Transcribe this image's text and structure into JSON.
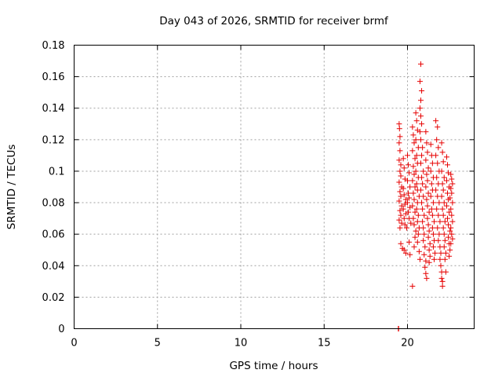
{
  "chart_data": {
    "type": "scatter",
    "title": "Day 043 of 2026, SRMTID for receiver brmf",
    "xlabel": "GPS time / hours",
    "ylabel": "SRMTID / TECUs",
    "xlim": [
      0,
      24
    ],
    "ylim": [
      0,
      0.18
    ],
    "xticks": [
      0,
      5,
      10,
      15,
      20
    ],
    "xtick_labels": [
      "0",
      "5",
      "10",
      "15",
      "20"
    ],
    "yticks": [
      0,
      0.02,
      0.04,
      0.06,
      0.08,
      0.1,
      0.12,
      0.14,
      0.16,
      0.18
    ],
    "ytick_labels": [
      "0",
      "0.02",
      "0.04",
      "0.06",
      "0.08",
      "0.1",
      "0.12",
      "0.14",
      "0.16",
      "0.18"
    ],
    "grid": true,
    "marker": "+",
    "color": "#e60000",
    "series": [
      {
        "name": "SRMTID",
        "points": [
          [
            19.45,
            0.0
          ],
          [
            19.47,
            0.0
          ],
          [
            19.5,
            0.13
          ],
          [
            19.52,
            0.127
          ],
          [
            19.55,
            0.122
          ],
          [
            19.5,
            0.118
          ],
          [
            19.55,
            0.113
          ],
          [
            19.5,
            0.107
          ],
          [
            19.6,
            0.104
          ],
          [
            19.55,
            0.1
          ],
          [
            19.6,
            0.097
          ],
          [
            19.5,
            0.093
          ],
          [
            19.65,
            0.09
          ],
          [
            19.55,
            0.087
          ],
          [
            19.6,
            0.084
          ],
          [
            19.5,
            0.081
          ],
          [
            19.65,
            0.078
          ],
          [
            19.55,
            0.075
          ],
          [
            19.6,
            0.072
          ],
          [
            19.5,
            0.069
          ],
          [
            19.65,
            0.067
          ],
          [
            19.55,
            0.064
          ],
          [
            19.6,
            0.054
          ],
          [
            19.7,
            0.051
          ],
          [
            19.75,
            0.108
          ],
          [
            19.8,
            0.102
          ],
          [
            19.85,
            0.095
          ],
          [
            19.75,
            0.089
          ],
          [
            19.8,
            0.085
          ],
          [
            19.9,
            0.082
          ],
          [
            19.85,
            0.079
          ],
          [
            19.75,
            0.076
          ],
          [
            19.9,
            0.073
          ],
          [
            19.8,
            0.07
          ],
          [
            19.85,
            0.066
          ],
          [
            19.95,
            0.064
          ],
          [
            19.8,
            0.05
          ],
          [
            19.9,
            0.048
          ],
          [
            20.0,
            0.11
          ],
          [
            20.05,
            0.104
          ],
          [
            20.1,
            0.099
          ],
          [
            20.0,
            0.094
          ],
          [
            20.15,
            0.09
          ],
          [
            20.05,
            0.086
          ],
          [
            20.1,
            0.083
          ],
          [
            20.0,
            0.08
          ],
          [
            20.15,
            0.077
          ],
          [
            20.05,
            0.074
          ],
          [
            20.1,
            0.07
          ],
          [
            20.2,
            0.067
          ],
          [
            20.1,
            0.055
          ],
          [
            20.15,
            0.047
          ],
          [
            20.3,
            0.027
          ],
          [
            20.3,
            0.128
          ],
          [
            20.35,
            0.123
          ],
          [
            20.4,
            0.118
          ],
          [
            20.3,
            0.113
          ],
          [
            20.45,
            0.108
          ],
          [
            20.35,
            0.103
          ],
          [
            20.4,
            0.098
          ],
          [
            20.3,
            0.094
          ],
          [
            20.45,
            0.09
          ],
          [
            20.35,
            0.086
          ],
          [
            20.4,
            0.082
          ],
          [
            20.3,
            0.078
          ],
          [
            20.45,
            0.074
          ],
          [
            20.35,
            0.07
          ],
          [
            20.4,
            0.066
          ],
          [
            20.5,
            0.062
          ],
          [
            20.45,
            0.058
          ],
          [
            20.4,
            0.052
          ],
          [
            20.5,
            0.137
          ],
          [
            20.55,
            0.132
          ],
          [
            20.6,
            0.126
          ],
          [
            20.5,
            0.12
          ],
          [
            20.65,
            0.115
          ],
          [
            20.55,
            0.11
          ],
          [
            20.6,
            0.105
          ],
          [
            20.5,
            0.1
          ],
          [
            20.65,
            0.096
          ],
          [
            20.55,
            0.092
          ],
          [
            20.6,
            0.088
          ],
          [
            20.7,
            0.084
          ],
          [
            20.6,
            0.08
          ],
          [
            20.55,
            0.076
          ],
          [
            20.65,
            0.072
          ],
          [
            20.6,
            0.068
          ],
          [
            20.7,
            0.064
          ],
          [
            20.65,
            0.06
          ],
          [
            20.6,
            0.055
          ],
          [
            20.7,
            0.049
          ],
          [
            20.75,
            0.044
          ],
          [
            20.8,
            0.168
          ],
          [
            20.75,
            0.157
          ],
          [
            20.85,
            0.151
          ],
          [
            20.8,
            0.145
          ],
          [
            20.75,
            0.14
          ],
          [
            20.8,
            0.135
          ],
          [
            20.85,
            0.13
          ],
          [
            20.75,
            0.125
          ],
          [
            20.8,
            0.12
          ],
          [
            20.9,
            0.115
          ],
          [
            20.85,
            0.11
          ],
          [
            20.8,
            0.105
          ],
          [
            20.95,
            0.1
          ],
          [
            20.85,
            0.096
          ],
          [
            20.9,
            0.092
          ],
          [
            20.8,
            0.088
          ],
          [
            20.95,
            0.084
          ],
          [
            20.85,
            0.08
          ],
          [
            20.9,
            0.076
          ],
          [
            21.0,
            0.072
          ],
          [
            20.9,
            0.068
          ],
          [
            20.95,
            0.064
          ],
          [
            21.0,
            0.06
          ],
          [
            20.95,
            0.056
          ],
          [
            21.05,
            0.052
          ],
          [
            21.0,
            0.047
          ],
          [
            21.1,
            0.043
          ],
          [
            21.05,
            0.039
          ],
          [
            21.1,
            0.035
          ],
          [
            21.15,
            0.032
          ],
          [
            21.1,
            0.125
          ],
          [
            21.15,
            0.118
          ],
          [
            21.2,
            0.112
          ],
          [
            21.1,
            0.107
          ],
          [
            21.25,
            0.102
          ],
          [
            21.15,
            0.098
          ],
          [
            21.2,
            0.094
          ],
          [
            21.1,
            0.09
          ],
          [
            21.25,
            0.086
          ],
          [
            21.15,
            0.082
          ],
          [
            21.2,
            0.078
          ],
          [
            21.3,
            0.074
          ],
          [
            21.2,
            0.07
          ],
          [
            21.25,
            0.066
          ],
          [
            21.3,
            0.062
          ],
          [
            21.25,
            0.058
          ],
          [
            21.35,
            0.054
          ],
          [
            21.3,
            0.05
          ],
          [
            21.35,
            0.046
          ],
          [
            21.3,
            0.042
          ],
          [
            21.4,
            0.117
          ],
          [
            21.45,
            0.11
          ],
          [
            21.5,
            0.105
          ],
          [
            21.4,
            0.1
          ],
          [
            21.55,
            0.096
          ],
          [
            21.45,
            0.092
          ],
          [
            21.5,
            0.088
          ],
          [
            21.4,
            0.084
          ],
          [
            21.55,
            0.08
          ],
          [
            21.45,
            0.076
          ],
          [
            21.5,
            0.072
          ],
          [
            21.6,
            0.068
          ],
          [
            21.5,
            0.064
          ],
          [
            21.55,
            0.06
          ],
          [
            21.6,
            0.056
          ],
          [
            21.55,
            0.052
          ],
          [
            21.65,
            0.048
          ],
          [
            21.6,
            0.044
          ],
          [
            21.7,
            0.132
          ],
          [
            21.8,
            0.128
          ],
          [
            21.75,
            0.12
          ],
          [
            21.85,
            0.115
          ],
          [
            21.7,
            0.11
          ],
          [
            21.8,
            0.105
          ],
          [
            21.9,
            0.1
          ],
          [
            21.75,
            0.096
          ],
          [
            21.85,
            0.092
          ],
          [
            21.7,
            0.088
          ],
          [
            21.8,
            0.084
          ],
          [
            21.9,
            0.08
          ],
          [
            21.75,
            0.076
          ],
          [
            21.85,
            0.072
          ],
          [
            21.95,
            0.068
          ],
          [
            21.8,
            0.064
          ],
          [
            21.9,
            0.06
          ],
          [
            21.85,
            0.056
          ],
          [
            21.95,
            0.052
          ],
          [
            22.0,
            0.048
          ],
          [
            21.95,
            0.044
          ],
          [
            22.0,
            0.04
          ],
          [
            22.05,
            0.036
          ],
          [
            22.05,
            0.032
          ],
          [
            22.1,
            0.03
          ],
          [
            22.1,
            0.027
          ],
          [
            22.05,
            0.118
          ],
          [
            22.1,
            0.112
          ],
          [
            22.15,
            0.106
          ],
          [
            22.05,
            0.1
          ],
          [
            22.2,
            0.096
          ],
          [
            22.1,
            0.092
          ],
          [
            22.15,
            0.088
          ],
          [
            22.05,
            0.084
          ],
          [
            22.2,
            0.08
          ],
          [
            22.1,
            0.076
          ],
          [
            22.15,
            0.072
          ],
          [
            22.25,
            0.068
          ],
          [
            22.15,
            0.064
          ],
          [
            22.2,
            0.06
          ],
          [
            22.25,
            0.056
          ],
          [
            22.2,
            0.052
          ],
          [
            22.3,
            0.048
          ],
          [
            22.25,
            0.044
          ],
          [
            22.3,
            0.036
          ],
          [
            22.35,
            0.109
          ],
          [
            22.4,
            0.104
          ],
          [
            22.45,
            0.099
          ],
          [
            22.35,
            0.094
          ],
          [
            22.5,
            0.09
          ],
          [
            22.4,
            0.086
          ],
          [
            22.45,
            0.082
          ],
          [
            22.35,
            0.078
          ],
          [
            22.5,
            0.074
          ],
          [
            22.4,
            0.07
          ],
          [
            22.45,
            0.066
          ],
          [
            22.55,
            0.062
          ],
          [
            22.45,
            0.058
          ],
          [
            22.5,
            0.054
          ],
          [
            22.55,
            0.05
          ],
          [
            22.5,
            0.046
          ],
          [
            22.6,
            0.098
          ],
          [
            22.65,
            0.095
          ],
          [
            22.7,
            0.092
          ],
          [
            22.6,
            0.089
          ],
          [
            22.65,
            0.086
          ],
          [
            22.55,
            0.083
          ],
          [
            22.7,
            0.08
          ],
          [
            22.6,
            0.076
          ],
          [
            22.65,
            0.072
          ],
          [
            22.7,
            0.068
          ],
          [
            22.6,
            0.064
          ],
          [
            22.65,
            0.06
          ],
          [
            22.7,
            0.057
          ],
          [
            22.6,
            0.054
          ]
        ]
      }
    ]
  }
}
